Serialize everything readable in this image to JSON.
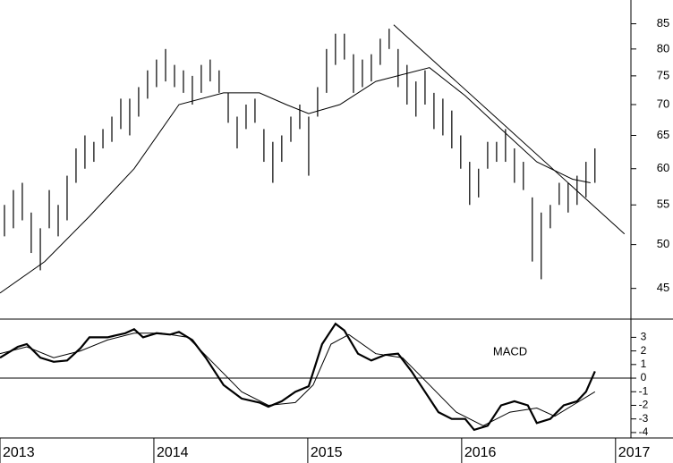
{
  "chart_data": [
    {
      "type": "ohlc",
      "log_scale": true,
      "color": "#000000",
      "xlim": [
        2013.0,
        2017.1
      ],
      "ylim": [
        41.8,
        90
      ],
      "yticks": [
        45,
        50,
        55,
        60,
        65,
        70,
        75,
        80,
        85
      ],
      "x": [
        2013.029,
        2013.087,
        2013.145,
        2013.203,
        2013.262,
        2013.32,
        2013.378,
        2013.436,
        2013.494,
        2013.552,
        2013.61,
        2013.669,
        2013.727,
        2013.785,
        2013.843,
        2013.901,
        2013.959,
        2014.017,
        2014.076,
        2014.134,
        2014.192,
        2014.25,
        2014.308,
        2014.366,
        2014.424,
        2014.483,
        2014.541,
        2014.599,
        2014.657,
        2014.715,
        2014.773,
        2014.831,
        2014.89,
        2014.948,
        2015.006,
        2015.064,
        2015.122,
        2015.18,
        2015.238,
        2015.297,
        2015.355,
        2015.413,
        2015.471,
        2015.529,
        2015.587,
        2015.645,
        2015.703,
        2015.762,
        2015.82,
        2015.878,
        2015.936,
        2015.994,
        2016.052,
        2016.11,
        2016.169,
        2016.227,
        2016.285,
        2016.343,
        2016.401,
        2016.459,
        2016.517,
        2016.576,
        2016.634,
        2016.692,
        2016.75,
        2016.808,
        2016.866
      ],
      "high": [
        55,
        57,
        58,
        54,
        52,
        57,
        55,
        59,
        63,
        65,
        64,
        66,
        68,
        71,
        71,
        73,
        76,
        78,
        80,
        77,
        76,
        75,
        77,
        78,
        76,
        72,
        68,
        70,
        71,
        66,
        64,
        65,
        68,
        70,
        68,
        73,
        80,
        83,
        83,
        79,
        78,
        79,
        82,
        84,
        80,
        77,
        74,
        76,
        72,
        71,
        69,
        65,
        61,
        60,
        64,
        64,
        66,
        63,
        61,
        56,
        54,
        55,
        58,
        58,
        59,
        61,
        63
      ],
      "low": [
        51,
        52,
        53,
        49,
        47,
        52,
        51,
        53,
        58,
        60,
        61,
        63,
        64,
        66,
        65,
        68,
        71,
        73,
        74,
        73,
        72,
        70,
        72,
        74,
        72,
        67,
        63,
        66,
        67,
        61,
        58,
        61,
        64,
        66,
        59,
        68,
        72,
        77,
        78,
        72,
        73,
        74,
        77,
        80,
        73,
        70,
        68,
        70,
        66,
        65,
        63,
        60,
        55,
        56,
        60,
        61,
        61,
        58,
        57,
        48,
        46,
        52,
        55,
        54,
        55,
        56,
        58
      ],
      "moving_average": {
        "color": "#000000",
        "x": [
          2013.0,
          2013.291,
          2013.581,
          2013.872,
          2014.163,
          2014.453,
          2014.686,
          2014.86,
          2015.006,
          2015.209,
          2015.442,
          2015.791,
          2016.023,
          2016.256,
          2016.488,
          2016.721,
          2016.837
        ],
        "values": [
          44.5,
          48,
          53.5,
          60,
          70,
          72,
          72,
          70,
          68.5,
          70,
          74,
          76.5,
          71.5,
          66,
          61,
          58.5,
          58
        ]
      },
      "trendline": {
        "color": "#000000",
        "x": [
          2015.558,
          2017.058
        ],
        "values": [
          84.8,
          51.3
        ]
      }
    },
    {
      "type": "line",
      "annotation": "MACD",
      "xlim": [
        2013.0,
        2017.1
      ],
      "xticks": [
        2013,
        2014,
        2015,
        2016,
        2017
      ],
      "ylim": [
        -4.4,
        4.34
      ],
      "yticks": [
        3,
        2,
        1,
        0,
        -1,
        -2,
        -3,
        -4
      ],
      "zero_line": true,
      "series": [
        {
          "color": "#000000",
          "line_width": 2.2,
          "x": [
            2013.0,
            2013.116,
            2013.174,
            2013.262,
            2013.349,
            2013.436,
            2013.523,
            2013.581,
            2013.698,
            2013.814,
            2013.872,
            2013.93,
            2014.017,
            2014.105,
            2014.163,
            2014.25,
            2014.337,
            2014.453,
            2014.57,
            2014.686,
            2014.744,
            2014.831,
            2014.919,
            2015.006,
            2015.093,
            2015.18,
            2015.238,
            2015.326,
            2015.413,
            2015.5,
            2015.587,
            2015.674,
            2015.762,
            2015.849,
            2015.936,
            2016.023,
            2016.081,
            2016.169,
            2016.256,
            2016.343,
            2016.43,
            2016.488,
            2016.576,
            2016.663,
            2016.75,
            2016.808,
            2016.866
          ],
          "values": [
            1.5,
            2.3,
            2.5,
            1.5,
            1.2,
            1.3,
            2.2,
            3.0,
            3.0,
            3.3,
            3.6,
            3.0,
            3.3,
            3.2,
            3.4,
            2.8,
            1.5,
            -0.5,
            -1.5,
            -1.8,
            -2.1,
            -1.7,
            -1.0,
            -0.6,
            2.5,
            4.0,
            3.5,
            1.8,
            1.3,
            1.7,
            1.8,
            0.5,
            -1.0,
            -2.5,
            -3.0,
            -3.0,
            -3.8,
            -3.5,
            -2.0,
            -1.7,
            -2.0,
            -3.3,
            -3.0,
            -2.0,
            -1.7,
            -1.0,
            0.5
          ]
        },
        {
          "color": "#000000",
          "line_width": 1,
          "x": [
            2013.0,
            2013.174,
            2013.349,
            2013.523,
            2013.698,
            2013.872,
            2014.047,
            2014.221,
            2014.395,
            2014.57,
            2014.744,
            2014.919,
            2015.035,
            2015.151,
            2015.267,
            2015.442,
            2015.616,
            2015.791,
            2015.965,
            2016.14,
            2016.314,
            2016.488,
            2016.605,
            2016.721,
            2016.866
          ],
          "values": [
            1.8,
            2.3,
            1.5,
            2.0,
            2.8,
            3.3,
            3.3,
            3.0,
            1.0,
            -1.0,
            -2.0,
            -1.8,
            -0.5,
            2.5,
            3.2,
            1.8,
            1.5,
            -0.5,
            -2.5,
            -3.5,
            -2.5,
            -2.2,
            -2.8,
            -2.0,
            -1.0
          ]
        }
      ]
    }
  ]
}
